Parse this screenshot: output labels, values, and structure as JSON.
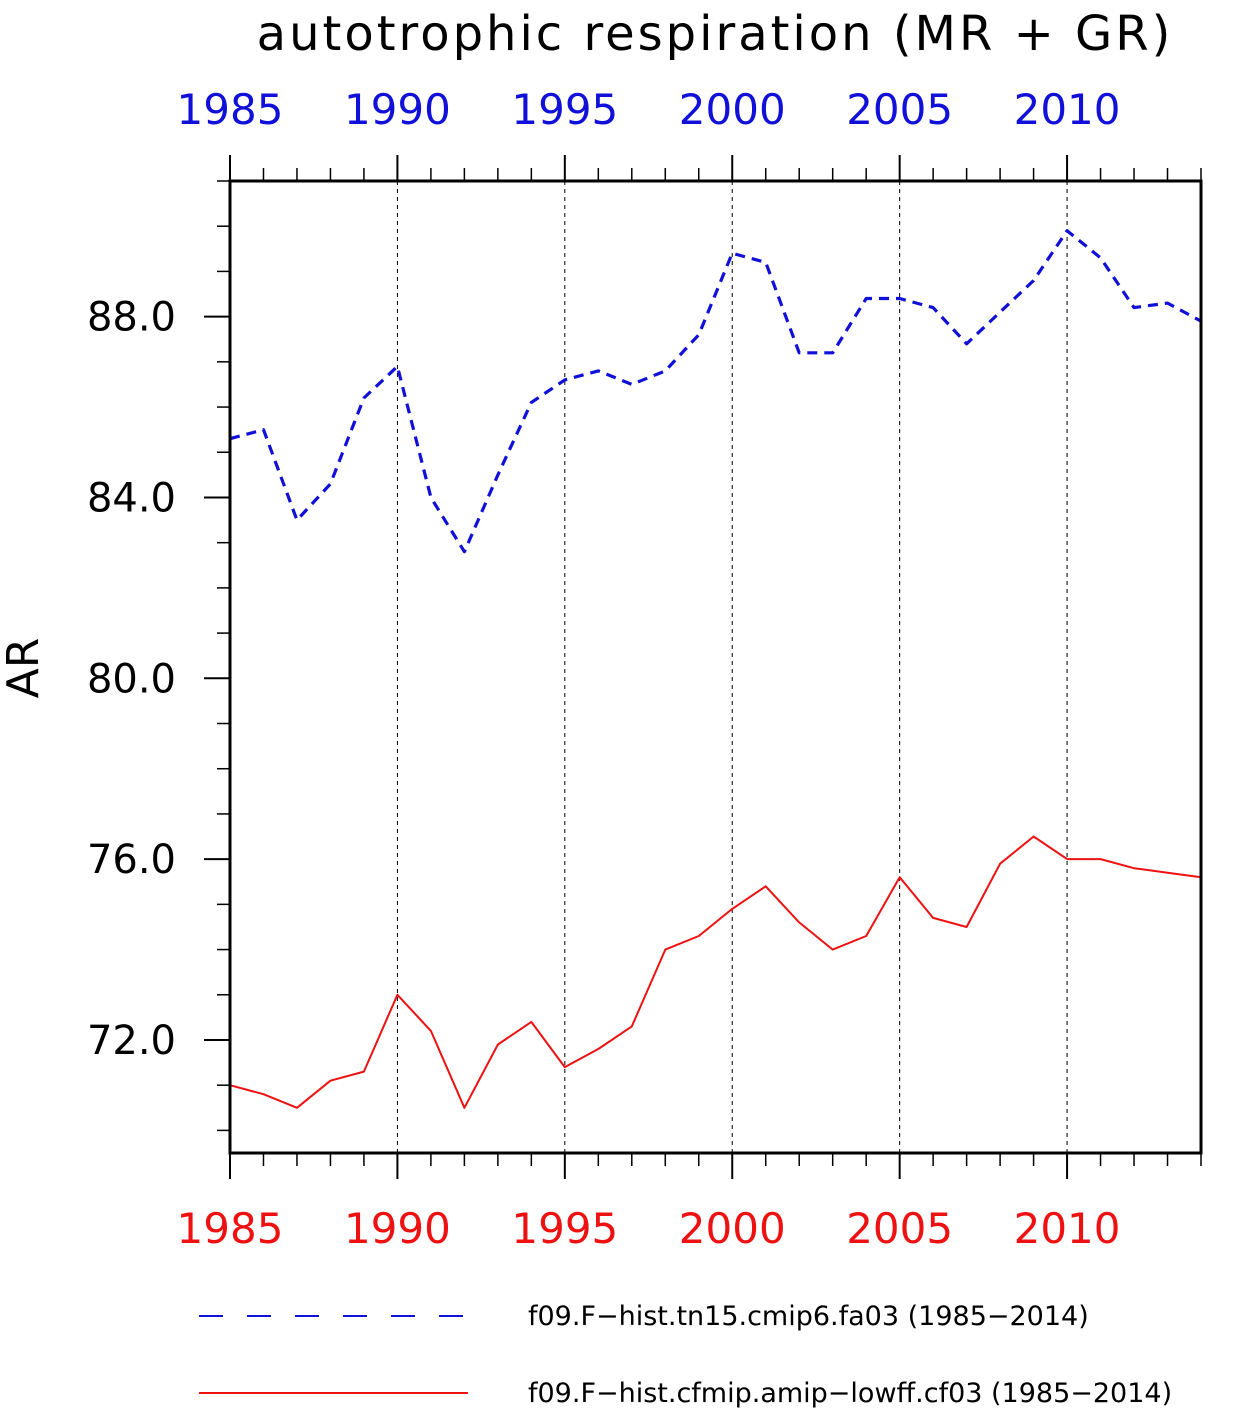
{
  "chart_data": {
    "type": "line",
    "title": "autotrophic respiration (MR + GR)",
    "xlabel": "",
    "ylabel": "AR",
    "xlim": [
      1985,
      2014
    ],
    "ylim": [
      69.5,
      91.0
    ],
    "x_ticks": [
      1985,
      1990,
      1995,
      2000,
      2005,
      2010
    ],
    "x_tick_labels": [
      "1985",
      "1990",
      "1995",
      "2000",
      "2005",
      "2010"
    ],
    "y_ticks": [
      72.0,
      76.0,
      80.0,
      84.0,
      88.0
    ],
    "y_tick_labels": [
      "72.0",
      "76.0",
      "80.0",
      "84.0",
      "88.0"
    ],
    "grid": "vertical dashed lines at major x ticks",
    "legend_position": "bottom",
    "top_axis_color": "#1010d8",
    "bottom_axis_color": "#ee1111",
    "x": [
      1985,
      1986,
      1987,
      1988,
      1989,
      1990,
      1991,
      1992,
      1993,
      1994,
      1995,
      1996,
      1997,
      1998,
      1999,
      2000,
      2001,
      2002,
      2003,
      2004,
      2005,
      2006,
      2007,
      2008,
      2009,
      2010,
      2011,
      2012,
      2013,
      2014
    ],
    "series": [
      {
        "name": "f09.F−hist.tn15.cmip6.fa03 (1985−2014)",
        "color": "#1010d8",
        "style": "dashed",
        "values": [
          85.3,
          85.5,
          83.5,
          84.3,
          86.2,
          86.9,
          84.0,
          82.8,
          84.5,
          86.1,
          86.6,
          86.8,
          86.5,
          86.8,
          87.6,
          89.4,
          89.2,
          87.2,
          87.2,
          88.4,
          88.4,
          88.2,
          87.4,
          88.1,
          88.8,
          89.9,
          89.3,
          88.2,
          88.3,
          87.9
        ]
      },
      {
        "name": "f09.F−hist.cfmip.amip−lowff.cf03 (1985−2014)",
        "color": "#ee1111",
        "style": "solid",
        "values": [
          71.0,
          70.8,
          70.5,
          71.1,
          71.3,
          73.0,
          72.2,
          70.5,
          71.9,
          72.4,
          71.4,
          71.8,
          72.3,
          74.0,
          74.3,
          74.9,
          75.4,
          74.6,
          74.0,
          74.3,
          75.6,
          74.7,
          74.5,
          75.9,
          76.5,
          76.0,
          76.0,
          75.8,
          75.7,
          75.6
        ]
      }
    ]
  }
}
